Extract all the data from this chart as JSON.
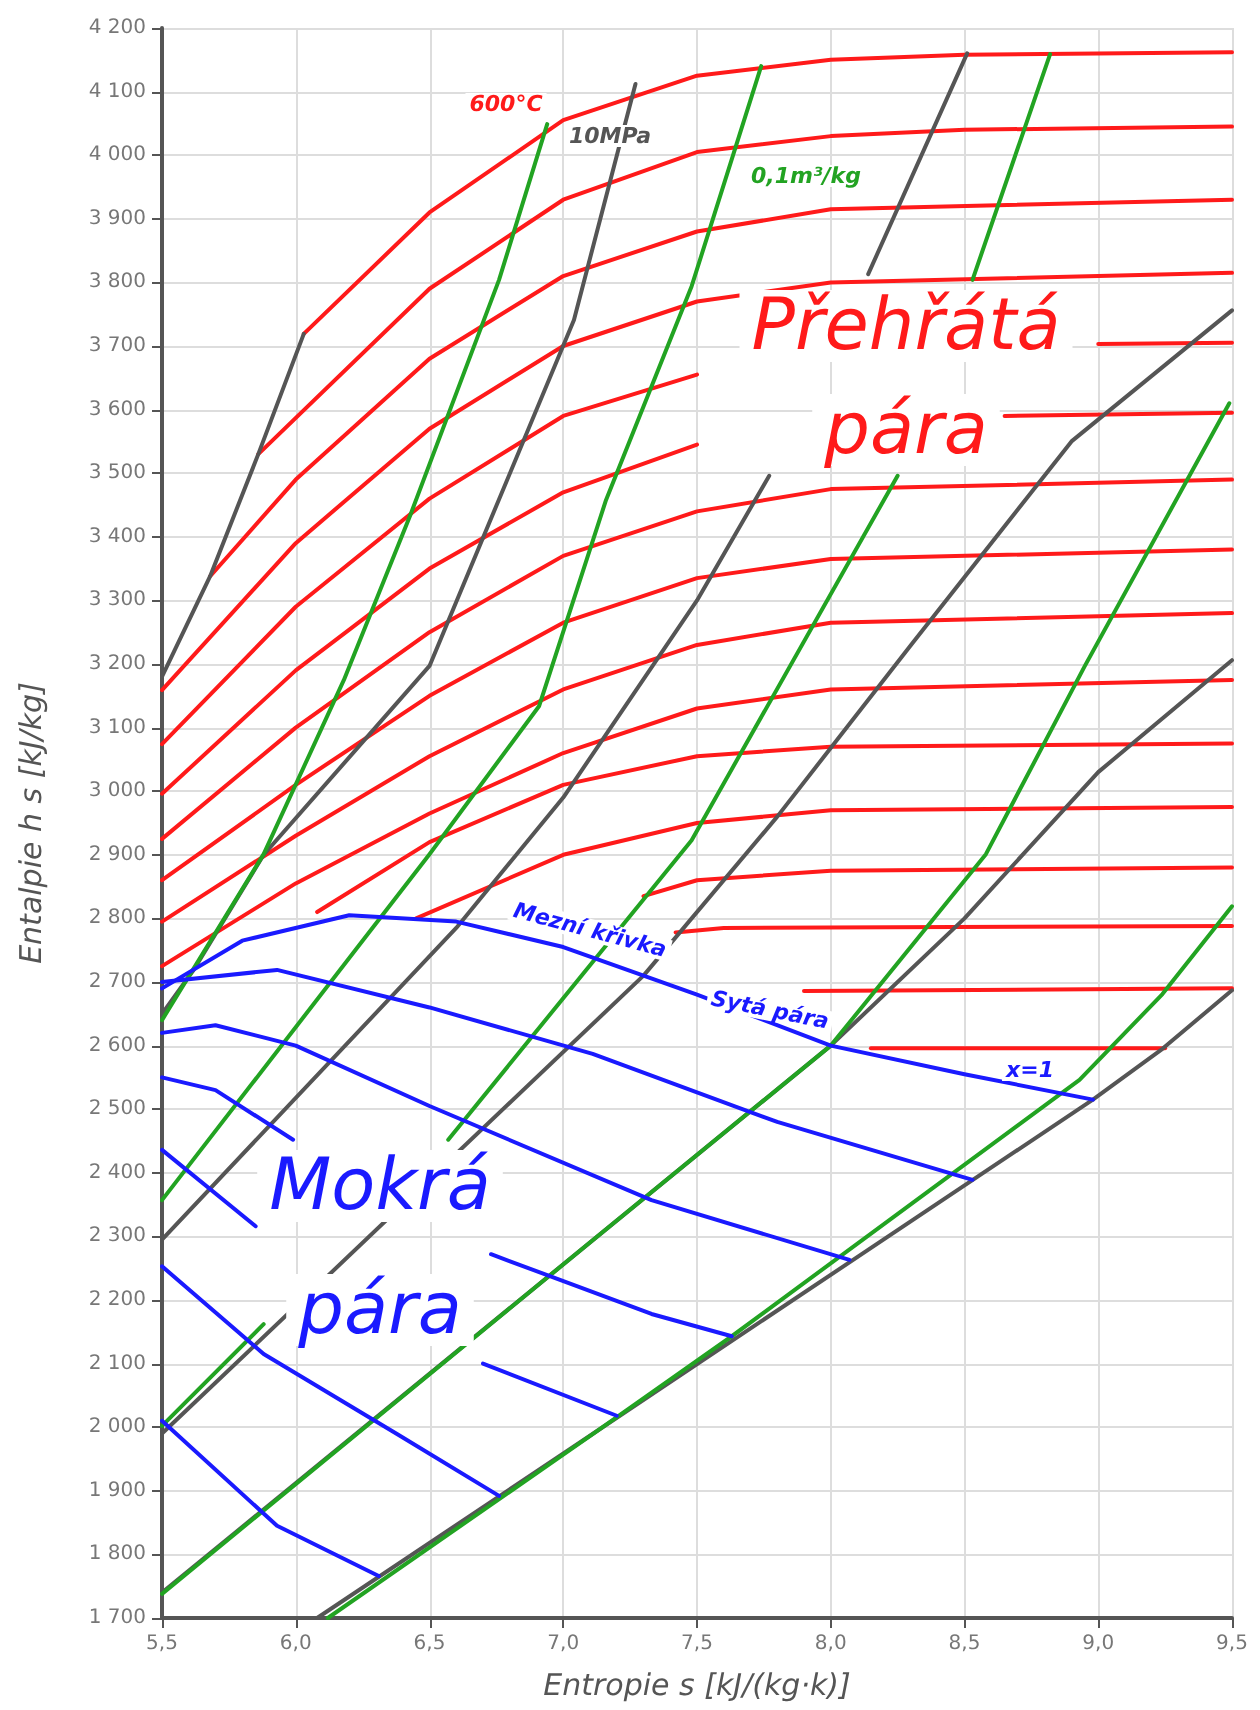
{
  "chart_data": {
    "type": "line",
    "xlabel": "Entropie s [kJ/(kg·k)]",
    "ylabel": "Entalpie h s [kJ/kg]",
    "xlim": [
      5.5,
      9.5
    ],
    "ylim": [
      1700,
      4200
    ],
    "xticks": [
      {
        "value": 5.5,
        "label": "5,5"
      },
      {
        "value": 6.0,
        "label": "6,0"
      },
      {
        "value": 6.5,
        "label": "6,5"
      },
      {
        "value": 7.0,
        "label": "7,0"
      },
      {
        "value": 7.5,
        "label": "7,5"
      },
      {
        "value": 8.0,
        "label": "8,0"
      },
      {
        "value": 8.5,
        "label": "8,5"
      },
      {
        "value": 9.0,
        "label": "9,0"
      },
      {
        "value": 9.5,
        "label": "9,5"
      }
    ],
    "yticks": [
      {
        "value": 1700,
        "label": "1 700"
      },
      {
        "value": 1800,
        "label": "1 800"
      },
      {
        "value": 1900,
        "label": "1 900"
      },
      {
        "value": 2000,
        "label": "2 000"
      },
      {
        "value": 2100,
        "label": "2 100"
      },
      {
        "value": 2200,
        "label": "2 200"
      },
      {
        "value": 2300,
        "label": "2 300"
      },
      {
        "value": 2400,
        "label": "2 400"
      },
      {
        "value": 2500,
        "label": "2 500"
      },
      {
        "value": 2600,
        "label": "2 600"
      },
      {
        "value": 2700,
        "label": "2 700"
      },
      {
        "value": 2800,
        "label": "2 800"
      },
      {
        "value": 2900,
        "label": "2 900"
      },
      {
        "value": 3000,
        "label": "3 000"
      },
      {
        "value": 3100,
        "label": "3 100"
      },
      {
        "value": 3200,
        "label": "3 200"
      },
      {
        "value": 3300,
        "label": "3 300"
      },
      {
        "value": 3400,
        "label": "3 400"
      },
      {
        "value": 3500,
        "label": "3 500"
      },
      {
        "value": 3600,
        "label": "3 600"
      },
      {
        "value": 3700,
        "label": "3 700"
      },
      {
        "value": 3800,
        "label": "3 800"
      },
      {
        "value": 3900,
        "label": "3 900"
      },
      {
        "value": 4000,
        "label": "4 000"
      },
      {
        "value": 4100,
        "label": "4 100"
      },
      {
        "value": 4200,
        "label": "4 200"
      }
    ],
    "grid": true,
    "marker": "none",
    "line_style": "solid",
    "series": [
      {
        "color": "#ff1a1a",
        "x": [
          6.03,
          6.5,
          7.0,
          7.5,
          8.0,
          8.5,
          9.5
        ],
        "values": [
          3719,
          3910,
          4055,
          4125,
          4150,
          4158,
          4162
        ]
      },
      {
        "color": "#ff1a1a",
        "x": [
          5.86,
          6.5,
          7.0,
          7.5,
          8.0,
          8.5,
          9.5
        ],
        "values": [
          3530,
          3790,
          3930,
          4005,
          4030,
          4040,
          4045
        ]
      },
      {
        "color": "#ff1a1a",
        "x": [
          5.68,
          6.0,
          6.5,
          7.0,
          7.5,
          8.0,
          9.5
        ],
        "values": [
          3338,
          3490,
          3680,
          3810,
          3880,
          3915,
          3930
        ]
      },
      {
        "color": "#ff1a1a",
        "x": [
          5.5,
          6.0,
          6.5,
          7.0,
          7.5,
          8.0,
          9.5
        ],
        "values": [
          3159,
          3390,
          3570,
          3700,
          3770,
          3800,
          3815
        ]
      },
      {
        "color": "#ff1a1a",
        "x": [
          5.5,
          6.0,
          6.5,
          7.0,
          7.5,
          null,
          9.0,
          9.5
        ],
        "values": [
          3074,
          3290,
          3460,
          3590,
          3655,
          null,
          3703,
          3705
        ]
      },
      {
        "color": "#ff1a1a",
        "x": [
          5.5,
          6.0,
          6.5,
          7.0,
          7.5,
          null,
          8.65,
          9.5
        ],
        "values": [
          2996,
          3190,
          3350,
          3470,
          3545,
          null,
          3590,
          3595
        ]
      },
      {
        "color": "#ff1a1a",
        "x": [
          5.5,
          6.0,
          6.5,
          7.0,
          7.5,
          8.0,
          9.5
        ],
        "values": [
          2925,
          3100,
          3250,
          3370,
          3440,
          3475,
          3490
        ]
      },
      {
        "color": "#ff1a1a",
        "x": [
          5.5,
          6.0,
          6.5,
          7.0,
          7.5,
          8.0,
          9.5
        ],
        "values": [
          2860,
          3010,
          3150,
          3265,
          3335,
          3365,
          3380
        ]
      },
      {
        "color": "#ff1a1a",
        "x": [
          5.5,
          6.0,
          6.5,
          7.0,
          7.5,
          8.0,
          9.5
        ],
        "values": [
          2795,
          2930,
          3055,
          3160,
          3230,
          3265,
          3280
        ]
      },
      {
        "color": "#ff1a1a",
        "x": [
          5.5,
          6.0,
          6.5,
          7.0,
          7.5,
          8.0,
          9.5
        ],
        "values": [
          2725,
          2855,
          2965,
          3060,
          3130,
          3160,
          3175
        ]
      },
      {
        "color": "#ff1a1a",
        "x": [
          6.08,
          6.5,
          7.0,
          7.5,
          8.0,
          9.5
        ],
        "values": [
          2810,
          2920,
          3010,
          3055,
          3070,
          3075
        ]
      },
      {
        "color": "#ff1a1a",
        "x": [
          6.45,
          7.0,
          7.5,
          8.0,
          9.5
        ],
        "values": [
          2800,
          2900,
          2950,
          2970,
          2975
        ]
      },
      {
        "color": "#ff1a1a",
        "x": [
          7.3,
          7.5,
          8.0,
          9.5
        ],
        "values": [
          2835,
          2860,
          2875,
          2880
        ]
      },
      {
        "color": "#ff1a1a",
        "x": [
          7.42,
          7.6,
          9.5
        ],
        "values": [
          2778,
          2785,
          2788
        ]
      },
      {
        "color": "#ff1a1a",
        "x": [
          7.9,
          9.5
        ],
        "values": [
          2686,
          2690
        ]
      },
      {
        "color": "#ff1a1a",
        "x": [
          8.15,
          9.25
        ],
        "values": [
          2596,
          2596
        ]
      },
      {
        "color": "#555555",
        "x": [
          5.5,
          5.68,
          5.86,
          6.03
        ],
        "values": [
          3180,
          3338,
          3530,
          3719
        ]
      },
      {
        "color": "#555555",
        "x": [
          5.5,
          5.62,
          5.88,
          6.5,
          7.04,
          7.27
        ],
        "values": [
          2650,
          2720,
          2900,
          3197,
          3741,
          4112
        ]
      },
      {
        "color": "#555555",
        "x": [
          5.5,
          6.6,
          7.0,
          7.5,
          7.77,
          null,
          8.14,
          8.51
        ],
        "values": [
          2295,
          2785,
          2990,
          3300,
          3496,
          null,
          3813,
          4160
        ]
      },
      {
        "color": "#555555",
        "x": [
          5.5,
          7.3,
          7.8,
          8.3,
          8.9,
          9.5
        ],
        "values": [
          1990,
          2710,
          2960,
          3230,
          3550,
          3756
        ]
      },
      {
        "color": "#555555",
        "x": [
          5.5,
          8.0,
          8.5,
          9.0,
          9.5
        ],
        "values": [
          1740,
          2600,
          2800,
          3030,
          3206
        ]
      },
      {
        "color": "#555555",
        "x": [
          6.08,
          8.98,
          9.24,
          9.5
        ],
        "values": [
          1700,
          2515,
          2595,
          2687
        ]
      },
      {
        "color": "#22a322",
        "x": [
          5.5,
          5.88,
          6.18,
          6.43,
          6.76,
          6.94
        ],
        "values": [
          2640,
          2901,
          3175,
          3436,
          3804,
          4049
        ]
      },
      {
        "color": "#22a322",
        "x": [
          5.5,
          6.5,
          6.91,
          7.16,
          7.48,
          7.74
        ],
        "values": [
          2357,
          2901,
          3134,
          3458,
          3794,
          4140
        ]
      },
      {
        "color": "#22a322",
        "x": [
          5.5,
          5.88,
          null,
          6.57,
          7.48,
          8.25,
          null,
          8.53,
          8.82
        ],
        "values": [
          2002,
          2162,
          null,
          2452,
          2923,
          3496,
          null,
          3804,
          4159
        ]
      },
      {
        "color": "#22a322",
        "x": [
          5.5,
          7.11,
          8.0,
          8.58,
          8.95,
          9.49
        ],
        "values": [
          1738,
          2294,
          2600,
          2901,
          3197,
          3610
        ]
      },
      {
        "color": "#22a322",
        "x": [
          6.12,
          7.11,
          7.63,
          8.93,
          9.24,
          9.5
        ],
        "values": [
          1700,
          1989,
          2143,
          2546,
          2681,
          2819
        ]
      },
      {
        "color": "#1a1aff",
        "x": [
          5.5,
          5.8,
          6.2,
          6.6,
          7.0,
          7.5,
          8.0,
          8.5,
          8.98
        ],
        "values": [
          2690,
          2765,
          2805,
          2795,
          2755,
          2680,
          2600,
          2555,
          2515
        ]
      },
      {
        "color": "#1a1aff",
        "x": [
          5.5,
          5.93,
          6.5,
          7.11,
          7.8,
          8.53
        ],
        "values": [
          2700,
          2719,
          2660,
          2587,
          2480,
          2389
        ]
      },
      {
        "color": "#1a1aff",
        "x": [
          5.5,
          5.7,
          6.0,
          6.5,
          7.33,
          8.07
        ],
        "values": [
          2620,
          2632,
          2600,
          2505,
          2357,
          2263
        ]
      },
      {
        "color": "#1a1aff",
        "x": [
          5.5,
          5.7,
          5.99,
          null,
          6.73,
          7.33,
          7.63
        ],
        "values": [
          2550,
          2530,
          2452,
          null,
          2272,
          2178,
          2143
        ]
      },
      {
        "color": "#1a1aff",
        "x": [
          5.5,
          5.85,
          null,
          6.7,
          7.2
        ],
        "values": [
          2436,
          2316,
          null,
          2100,
          2018
        ]
      },
      {
        "color": "#1a1aff",
        "x": [
          5.5,
          5.88,
          6.38,
          6.76
        ],
        "values": [
          2253,
          2115,
          1989,
          1892
        ]
      },
      {
        "color": "#1a1aff",
        "x": [
          5.5,
          5.93,
          6.31
        ],
        "values": [
          2010,
          1845,
          1766
        ]
      }
    ],
    "annotations": [
      "Přehřátá",
      "pára",
      "Mokrá",
      "pára",
      "600°C",
      "10MPa",
      "0,1m³/kg",
      "Mezní křivka",
      "Sytá pára",
      "x=1"
    ]
  }
}
